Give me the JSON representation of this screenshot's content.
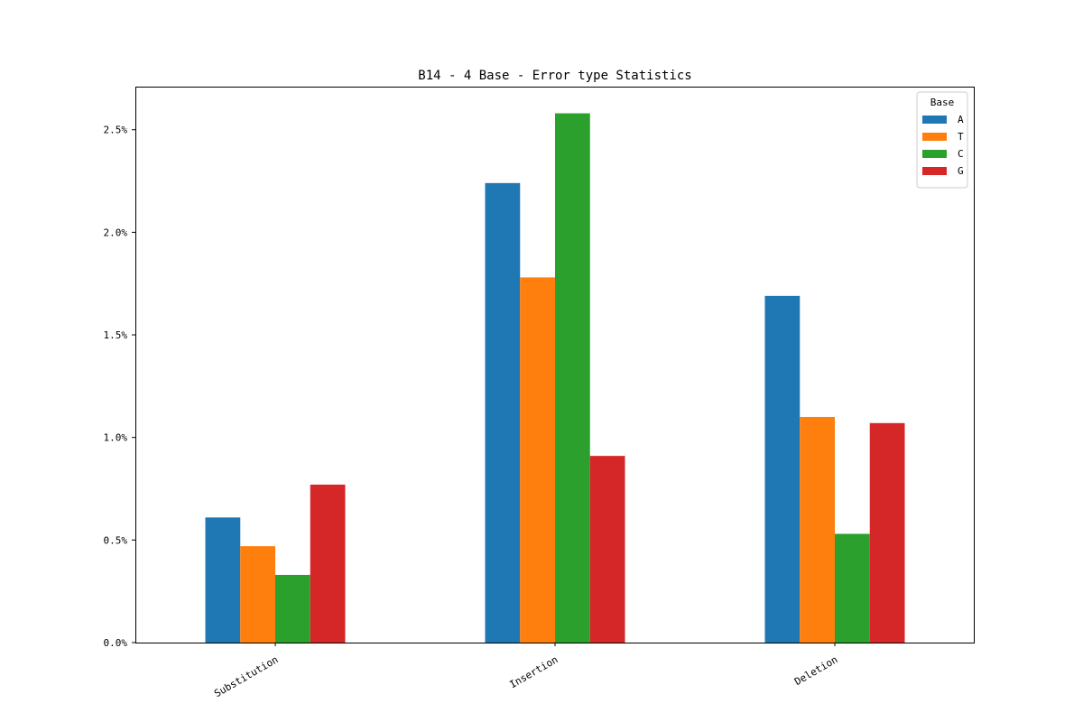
{
  "chart_data": {
    "type": "bar",
    "title": "B14 - 4 Base - Error type Statistics",
    "xlabel": "",
    "ylabel": "",
    "categories": [
      "Substitution",
      "Insertion",
      "Deletion"
    ],
    "series": [
      {
        "name": "A",
        "color": "#1f77b4",
        "values": [
          0.61,
          2.24,
          1.69
        ]
      },
      {
        "name": "T",
        "color": "#ff7f0e",
        "values": [
          0.47,
          1.78,
          1.1
        ]
      },
      {
        "name": "C",
        "color": "#2ca02c",
        "values": [
          0.33,
          2.58,
          0.53
        ]
      },
      {
        "name": "G",
        "color": "#d62728",
        "values": [
          0.77,
          0.91,
          1.07
        ]
      }
    ],
    "y_unit": "%",
    "ylim": [
      0,
      2.71
    ],
    "yticks": [
      0.0,
      0.5,
      1.0,
      1.5,
      2.0,
      2.5
    ],
    "ytick_labels": [
      "0.0%",
      "0.5%",
      "1.0%",
      "1.5%",
      "2.0%",
      "2.5%"
    ],
    "grid": false,
    "legend": {
      "title": "Base",
      "position": "top-right"
    }
  }
}
